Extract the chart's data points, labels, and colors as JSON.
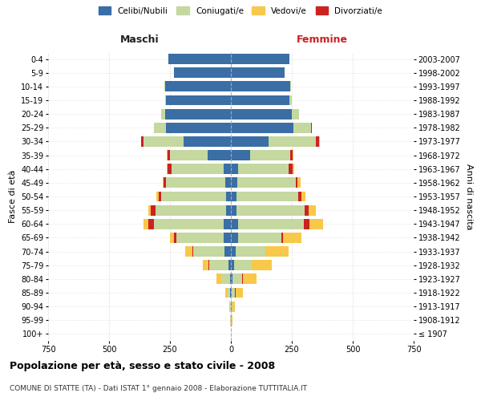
{
  "age_groups": [
    "100+",
    "95-99",
    "90-94",
    "85-89",
    "80-84",
    "75-79",
    "70-74",
    "65-69",
    "60-64",
    "55-59",
    "50-54",
    "45-49",
    "40-44",
    "35-39",
    "30-34",
    "25-29",
    "20-24",
    "15-19",
    "10-14",
    "5-9",
    "0-4"
  ],
  "birth_years": [
    "≤ 1907",
    "1908-1912",
    "1913-1917",
    "1918-1922",
    "1923-1927",
    "1928-1932",
    "1933-1937",
    "1938-1942",
    "1943-1947",
    "1948-1952",
    "1953-1957",
    "1958-1962",
    "1963-1967",
    "1968-1972",
    "1973-1977",
    "1978-1982",
    "1983-1987",
    "1988-1992",
    "1993-1997",
    "1998-2002",
    "2003-2007"
  ],
  "males": {
    "celibe": [
      0,
      0,
      1,
      2,
      4,
      10,
      25,
      30,
      30,
      20,
      20,
      22,
      28,
      95,
      195,
      265,
      270,
      265,
      270,
      235,
      255
    ],
    "coniugato": [
      1,
      2,
      5,
      12,
      35,
      80,
      130,
      195,
      285,
      290,
      265,
      245,
      215,
      155,
      165,
      50,
      15,
      5,
      2,
      0,
      0
    ],
    "vedovo": [
      0,
      0,
      2,
      8,
      18,
      22,
      30,
      18,
      18,
      10,
      8,
      5,
      3,
      2,
      1,
      0,
      0,
      0,
      0,
      0,
      0
    ],
    "divorziato": [
      0,
      0,
      0,
      0,
      1,
      2,
      2,
      8,
      25,
      18,
      12,
      8,
      18,
      10,
      8,
      2,
      1,
      0,
      0,
      0,
      0
    ]
  },
  "females": {
    "nubile": [
      0,
      1,
      2,
      3,
      5,
      12,
      20,
      28,
      30,
      22,
      22,
      25,
      28,
      80,
      155,
      255,
      250,
      240,
      245,
      220,
      240
    ],
    "coniugata": [
      1,
      2,
      6,
      15,
      42,
      72,
      120,
      180,
      270,
      280,
      255,
      240,
      210,
      165,
      195,
      75,
      30,
      10,
      3,
      1,
      0
    ],
    "vedova": [
      0,
      2,
      8,
      30,
      55,
      80,
      95,
      75,
      55,
      30,
      18,
      12,
      8,
      4,
      2,
      1,
      0,
      0,
      0,
      0,
      0
    ],
    "divorziata": [
      0,
      0,
      0,
      1,
      2,
      3,
      3,
      6,
      22,
      18,
      12,
      8,
      15,
      8,
      12,
      2,
      1,
      0,
      0,
      0,
      0
    ]
  },
  "colors": {
    "celibe": "#3a6ea5",
    "coniugato": "#c5d8a0",
    "vedovo": "#f7c84a",
    "divorziato": "#cc2222"
  },
  "xlim": 750,
  "xticks": [
    -750,
    -500,
    -250,
    0,
    250,
    500,
    750
  ],
  "title": "Popolazione per età, sesso e stato civile - 2008",
  "subtitle": "COMUNE DI STATTE (TA) - Dati ISTAT 1° gennaio 2008 - Elaborazione TUTTITALIA.IT",
  "ylabel_left": "Fasce di età",
  "ylabel_right": "Anni di nascita",
  "xlabel_left": "Maschi",
  "xlabel_right": "Femmine",
  "legend_labels": [
    "Celibi/Nubili",
    "Coniugati/e",
    "Vedovi/e",
    "Divorziati/e"
  ],
  "background_color": "#ffffff",
  "grid_color": "#cccccc",
  "bar_height": 0.75
}
